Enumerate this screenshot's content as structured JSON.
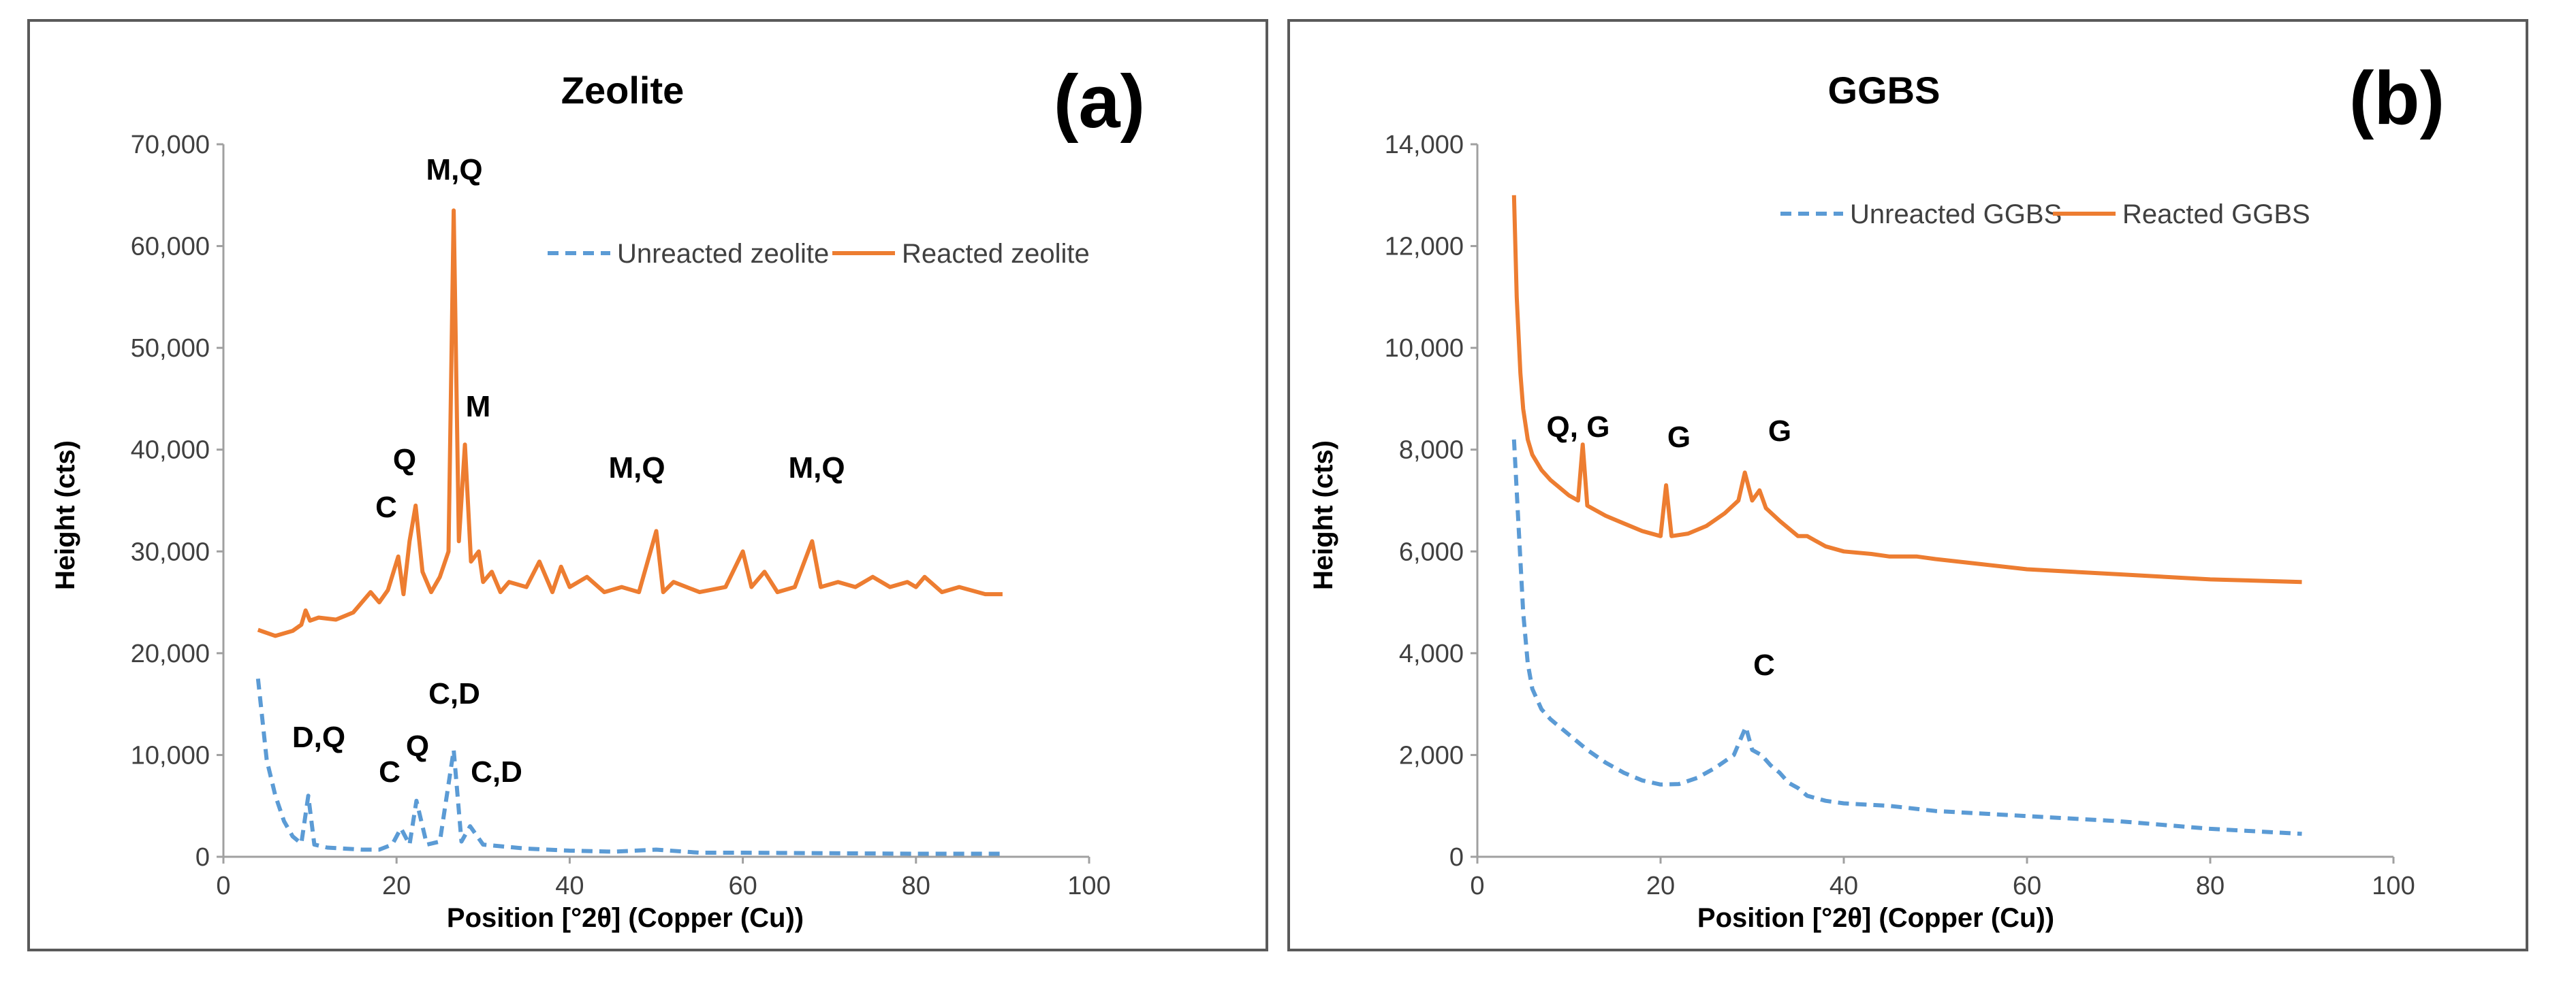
{
  "chart_data": [
    {
      "type": "line",
      "title": "Zeolite",
      "panel_label": "(a)",
      "xlabel": "Position [°2θ] (Copper (Cu))",
      "ylabel": "Height (cts)",
      "xlim": [
        0,
        100
      ],
      "ylim": [
        0,
        70000
      ],
      "xticks": [
        "0",
        "20",
        "40",
        "60",
        "80",
        "100"
      ],
      "yticks": [
        "0",
        "10,000",
        "20,000",
        "30,000",
        "40,000",
        "50,000",
        "60,000",
        "70,000"
      ],
      "grid": false,
      "legend_position": "top-right",
      "series": [
        {
          "name": "Unreacted zeolite",
          "color": "#5b9bd5",
          "style": "dashed",
          "x": [
            4,
            5,
            6,
            7,
            8,
            9,
            9.8,
            10.5,
            12,
            14,
            16,
            18,
            19.5,
            20.5,
            21.5,
            22.3,
            23.5,
            25,
            26.6,
            27.5,
            28.5,
            30,
            35,
            40,
            45,
            50,
            55,
            60,
            70,
            80,
            90
          ],
          "y": [
            17500,
            9500,
            6000,
            3500,
            2000,
            1300,
            6000,
            1200,
            900,
            800,
            700,
            700,
            1200,
            2800,
            1200,
            5500,
            1200,
            1500,
            10500,
            1500,
            3000,
            1200,
            800,
            600,
            500,
            700,
            400,
            400,
            350,
            300,
            300
          ]
        },
        {
          "name": "Reacted zeolite",
          "color": "#ed7d31",
          "style": "solid",
          "x": [
            4,
            6,
            8,
            9,
            9.5,
            10,
            11,
            13,
            15,
            17,
            18,
            19,
            20.2,
            20.8,
            21.5,
            22.2,
            23,
            24,
            25,
            26,
            26.6,
            27.2,
            27.9,
            28.6,
            29.5,
            30,
            31,
            32,
            33,
            35,
            36.5,
            38,
            39,
            40,
            42,
            44,
            46,
            48,
            50,
            50.8,
            52,
            55,
            58,
            60,
            61,
            62.5,
            64,
            66,
            68,
            69,
            71,
            73,
            75,
            77,
            79,
            80,
            81,
            83,
            85,
            88,
            90
          ],
          "y": [
            22300,
            21700,
            22200,
            22800,
            24200,
            23200,
            23500,
            23300,
            24000,
            26000,
            25000,
            26200,
            29500,
            25800,
            31000,
            34500,
            28000,
            26000,
            27500,
            30000,
            63500,
            31000,
            40500,
            29000,
            30000,
            27000,
            28000,
            26000,
            27000,
            26500,
            29000,
            26000,
            28500,
            26500,
            27500,
            26000,
            26500,
            26000,
            32000,
            26000,
            27000,
            26000,
            26500,
            30000,
            26500,
            28000,
            26000,
            26500,
            31000,
            26500,
            27000,
            26500,
            27500,
            26500,
            27000,
            26500,
            27500,
            26000,
            26500,
            25800,
            25800
          ]
        }
      ],
      "annotations": [
        "M,Q",
        "M",
        "Q",
        "C",
        "M,Q",
        "M,Q",
        "D,Q",
        "C",
        "Q",
        "C,D",
        "C,D"
      ]
    },
    {
      "type": "line",
      "title": "GGBS",
      "panel_label": "(b)",
      "xlabel": "Position [°2θ] (Copper (Cu))",
      "ylabel": "Height (cts)",
      "xlim": [
        0,
        100
      ],
      "ylim": [
        0,
        14000
      ],
      "xticks": [
        "0",
        "20",
        "40",
        "60",
        "80",
        "100"
      ],
      "yticks": [
        "0",
        "2,000",
        "4,000",
        "6,000",
        "8,000",
        "10,000",
        "12,000",
        "14,000"
      ],
      "grid": false,
      "legend_position": "top-right",
      "series": [
        {
          "name": "Unreacted GGBS",
          "color": "#5b9bd5",
          "style": "dashed",
          "x": [
            4,
            4.5,
            5,
            5.5,
            6,
            7,
            8,
            10,
            12,
            14,
            16,
            18,
            20,
            22,
            24,
            26,
            28,
            29.3,
            30,
            31,
            32,
            33,
            34,
            35,
            36,
            38,
            40,
            45,
            50,
            60,
            70,
            80,
            90
          ],
          "y": [
            8200,
            6500,
            4800,
            3800,
            3300,
            2900,
            2700,
            2400,
            2100,
            1850,
            1650,
            1500,
            1420,
            1430,
            1550,
            1750,
            2000,
            2550,
            2100,
            2000,
            1800,
            1650,
            1450,
            1350,
            1200,
            1100,
            1050,
            1000,
            900,
            800,
            700,
            550,
            450
          ]
        },
        {
          "name": "Reacted GGBS",
          "color": "#ed7d31",
          "style": "solid",
          "x": [
            4,
            4.3,
            4.7,
            5,
            5.5,
            6,
            7,
            8,
            9,
            10,
            11,
            11.5,
            12,
            14,
            16,
            18,
            20,
            20.6,
            21.2,
            23,
            25,
            27,
            28.5,
            29.2,
            30,
            30.8,
            31.5,
            33,
            35,
            36,
            38,
            40,
            43,
            45,
            48,
            50,
            55,
            60,
            70,
            80,
            90
          ],
          "y": [
            13000,
            11000,
            9500,
            8800,
            8200,
            7900,
            7600,
            7400,
            7250,
            7100,
            7000,
            8100,
            6900,
            6700,
            6550,
            6400,
            6300,
            7300,
            6300,
            6350,
            6500,
            6750,
            7000,
            7550,
            7000,
            7200,
            6850,
            6600,
            6300,
            6300,
            6100,
            6000,
            5950,
            5900,
            5900,
            5850,
            5750,
            5650,
            5550,
            5450,
            5400
          ]
        }
      ],
      "annotations": [
        "Q, G",
        "G",
        "G",
        "C"
      ]
    }
  ]
}
